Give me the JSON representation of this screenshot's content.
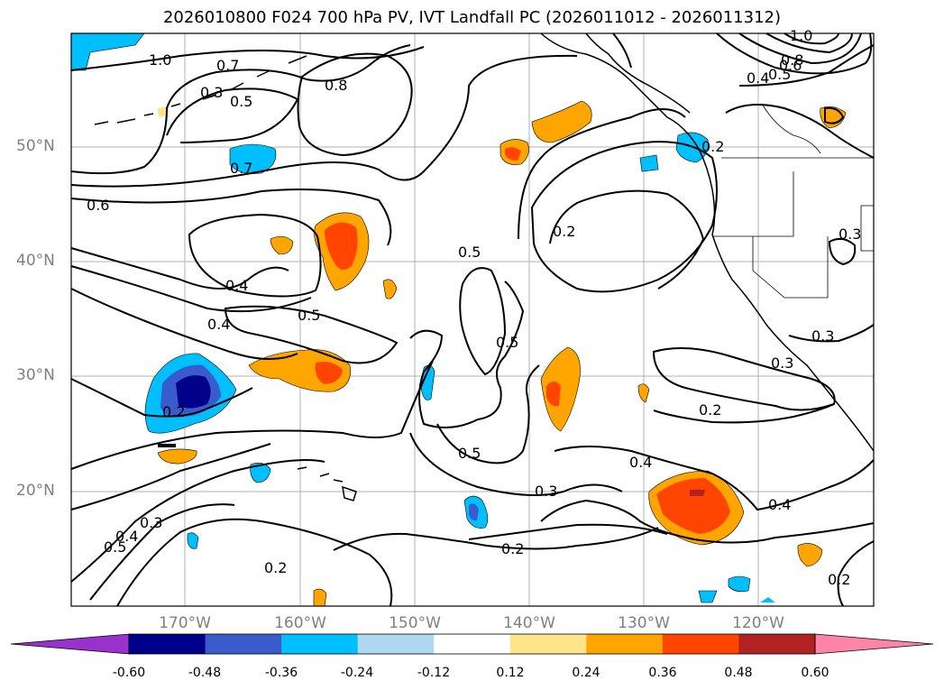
{
  "title": "2026010800 F024 700 hPa PV, IVT Landfall PC (2026011012 - 2026011312)",
  "lat_labels": [
    "50°N",
    "40°N",
    "30°N",
    "20°N"
  ],
  "lon_labels": [
    "170°W",
    "160°W",
    "150°W",
    "140°W",
    "130°W",
    "120°W"
  ],
  "colorbar": {
    "ticks": [
      "-0.60",
      "-0.48",
      "-0.36",
      "-0.24",
      "-0.12",
      "0.12",
      "0.24",
      "0.36",
      "0.48",
      "0.60"
    ],
    "colors": [
      "#9932cc",
      "#00008b",
      "#3a5bcc",
      "#00bfff",
      "#add8f0",
      "#ffffff",
      "#ffe58a",
      "#ffa500",
      "#ff4500",
      "#b22222",
      "#ff85a8"
    ]
  },
  "contour_labels": [
    "1.0",
    "0.7",
    "0.5",
    "0.8",
    "1.0",
    "0.8",
    "0.5",
    "0.6",
    "0.4",
    "0.7",
    "0.6",
    "0.2",
    "0.3",
    "0.4",
    "0.4",
    "0.5",
    "0.5",
    "0.5",
    "0.5",
    "0.2",
    "0.2",
    "0.4",
    "0.3",
    "0.3",
    "0.2",
    "0.3",
    "0.5",
    "0.4",
    "0.3",
    "0.2",
    "0.4",
    "0.2",
    "0.3",
    "0.2"
  ]
}
